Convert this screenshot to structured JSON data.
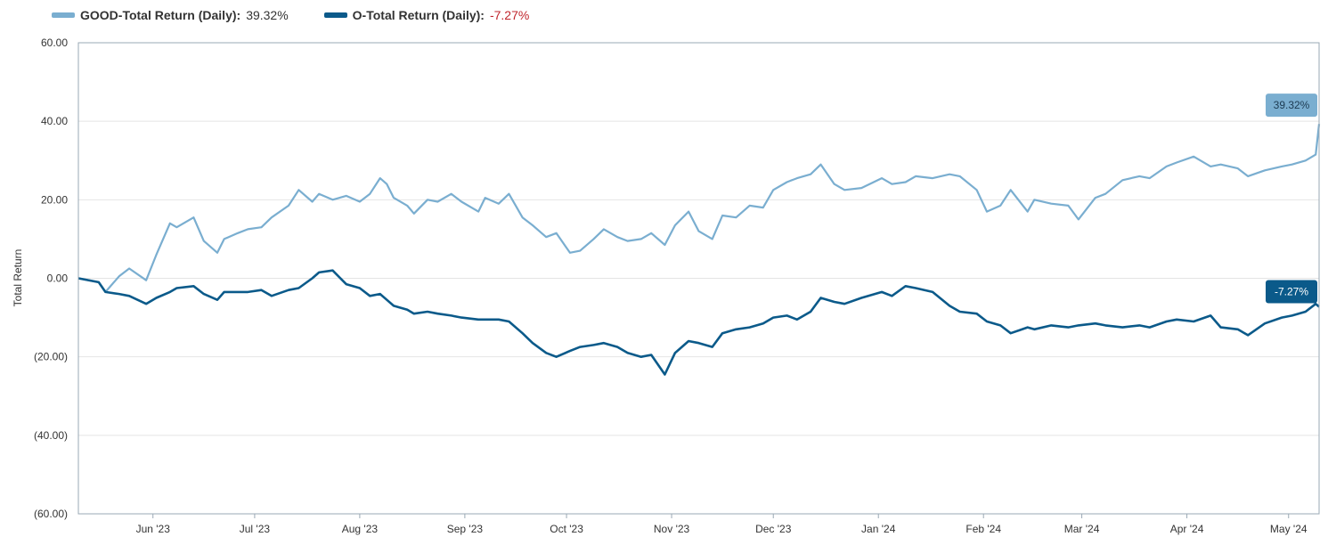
{
  "legend": {
    "good_name": "GOOD-Total Return (Daily):",
    "good_value": "39.32%",
    "o_name": "O-Total Return (Daily):",
    "o_value": "-7.27%"
  },
  "colors": {
    "good": "#7aaed0",
    "o": "#0b5a8a",
    "negative_text": "#c0262d",
    "grid": "#e4e4e4",
    "axis": "#9aa8b4"
  },
  "chart_data": {
    "type": "line",
    "ylabel": "Total Return",
    "ylim": [
      -60,
      60
    ],
    "y_ticks": [
      60,
      40,
      20,
      0,
      -20,
      -40,
      -60
    ],
    "y_tick_labels": [
      "60.00",
      "40.00",
      "20.00",
      "0.00",
      "(20.00)",
      "(40.00)",
      "(60.00)"
    ],
    "x_range": [
      "2023-05-10",
      "2024-05-10"
    ],
    "x_ticks": [
      "2023-06-01",
      "2023-07-01",
      "2023-08-01",
      "2023-09-01",
      "2023-10-01",
      "2023-11-01",
      "2023-12-01",
      "2024-01-01",
      "2024-02-01",
      "2024-03-01",
      "2024-04-01",
      "2024-05-01"
    ],
    "x_tick_labels": [
      "Jun '23",
      "Jul '23",
      "Aug '23",
      "Sep '23",
      "Oct '23",
      "Nov '23",
      "Dec '23",
      "Jan '24",
      "Feb '24",
      "Mar '24",
      "Apr '24",
      "May '24"
    ],
    "series": [
      {
        "name": "GOOD-Total Return (Daily)",
        "color": "#7aaed0",
        "end_label": "39.32%",
        "x": [
          "2023-05-10",
          "2023-05-16",
          "2023-05-18",
          "2023-05-22",
          "2023-05-25",
          "2023-05-30",
          "2023-06-02",
          "2023-06-06",
          "2023-06-08",
          "2023-06-13",
          "2023-06-16",
          "2023-06-20",
          "2023-06-22",
          "2023-06-26",
          "2023-06-29",
          "2023-07-03",
          "2023-07-06",
          "2023-07-11",
          "2023-07-14",
          "2023-07-18",
          "2023-07-20",
          "2023-07-24",
          "2023-07-28",
          "2023-08-01",
          "2023-08-04",
          "2023-08-07",
          "2023-08-09",
          "2023-08-11",
          "2023-08-15",
          "2023-08-17",
          "2023-08-21",
          "2023-08-24",
          "2023-08-28",
          "2023-08-31",
          "2023-09-05",
          "2023-09-07",
          "2023-09-11",
          "2023-09-14",
          "2023-09-18",
          "2023-09-21",
          "2023-09-25",
          "2023-09-28",
          "2023-10-02",
          "2023-10-05",
          "2023-10-09",
          "2023-10-12",
          "2023-10-16",
          "2023-10-19",
          "2023-10-23",
          "2023-10-26",
          "2023-10-30",
          "2023-11-02",
          "2023-11-06",
          "2023-11-09",
          "2023-11-13",
          "2023-11-16",
          "2023-11-20",
          "2023-11-24",
          "2023-11-28",
          "2023-12-01",
          "2023-12-05",
          "2023-12-08",
          "2023-12-12",
          "2023-12-15",
          "2023-12-19",
          "2023-12-22",
          "2023-12-27",
          "2024-01-02",
          "2024-01-05",
          "2024-01-09",
          "2024-01-12",
          "2024-01-17",
          "2024-01-22",
          "2024-01-25",
          "2024-01-30",
          "2024-02-02",
          "2024-02-06",
          "2024-02-09",
          "2024-02-14",
          "2024-02-16",
          "2024-02-21",
          "2024-02-26",
          "2024-02-29",
          "2024-03-05",
          "2024-03-08",
          "2024-03-13",
          "2024-03-18",
          "2024-03-21",
          "2024-03-26",
          "2024-03-29",
          "2024-04-03",
          "2024-04-08",
          "2024-04-11",
          "2024-04-16",
          "2024-04-19",
          "2024-04-24",
          "2024-04-29",
          "2024-05-02",
          "2024-05-06",
          "2024-05-09",
          "2024-05-10"
        ],
        "y": [
          0.0,
          -1.0,
          -3.5,
          0.5,
          2.5,
          -0.5,
          6.0,
          14.0,
          13.0,
          15.5,
          9.5,
          6.5,
          10.0,
          11.5,
          12.5,
          13.0,
          15.5,
          18.5,
          22.5,
          19.5,
          21.5,
          20.0,
          21.0,
          19.5,
          21.5,
          25.5,
          24.0,
          20.5,
          18.5,
          16.5,
          20.0,
          19.5,
          21.5,
          19.5,
          17.0,
          20.5,
          19.0,
          21.5,
          15.5,
          13.5,
          10.5,
          11.5,
          6.5,
          7.0,
          10.0,
          12.5,
          10.5,
          9.5,
          10.0,
          11.5,
          8.5,
          13.5,
          17.0,
          12.0,
          10.0,
          16.0,
          15.5,
          18.5,
          18.0,
          22.5,
          24.5,
          25.5,
          26.5,
          29.0,
          24.0,
          22.5,
          23.0,
          25.5,
          24.0,
          24.5,
          26.0,
          25.5,
          26.5,
          26.0,
          22.5,
          17.0,
          18.5,
          22.5,
          17.0,
          20.0,
          19.0,
          18.5,
          15.0,
          20.5,
          21.5,
          25.0,
          26.0,
          25.5,
          28.5,
          29.5,
          31.0,
          28.5,
          29.0,
          28.0,
          26.0,
          27.5,
          28.5,
          29.0,
          30.0,
          31.5,
          39.32
        ]
      },
      {
        "name": "O-Total Return (Daily)",
        "color": "#0b5a8a",
        "end_label": "-7.27%",
        "x": [
          "2023-05-10",
          "2023-05-16",
          "2023-05-18",
          "2023-05-22",
          "2023-05-25",
          "2023-05-30",
          "2023-06-02",
          "2023-06-06",
          "2023-06-08",
          "2023-06-13",
          "2023-06-16",
          "2023-06-20",
          "2023-06-22",
          "2023-06-26",
          "2023-06-29",
          "2023-07-03",
          "2023-07-06",
          "2023-07-11",
          "2023-07-14",
          "2023-07-18",
          "2023-07-20",
          "2023-07-24",
          "2023-07-28",
          "2023-08-01",
          "2023-08-04",
          "2023-08-07",
          "2023-08-09",
          "2023-08-11",
          "2023-08-15",
          "2023-08-17",
          "2023-08-21",
          "2023-08-24",
          "2023-08-28",
          "2023-08-31",
          "2023-09-05",
          "2023-09-07",
          "2023-09-11",
          "2023-09-14",
          "2023-09-18",
          "2023-09-21",
          "2023-09-25",
          "2023-09-28",
          "2023-10-02",
          "2023-10-05",
          "2023-10-09",
          "2023-10-12",
          "2023-10-16",
          "2023-10-19",
          "2023-10-23",
          "2023-10-26",
          "2023-10-30",
          "2023-11-02",
          "2023-11-06",
          "2023-11-09",
          "2023-11-13",
          "2023-11-16",
          "2023-11-20",
          "2023-11-24",
          "2023-11-28",
          "2023-12-01",
          "2023-12-05",
          "2023-12-08",
          "2023-12-12",
          "2023-12-15",
          "2023-12-19",
          "2023-12-22",
          "2023-12-27",
          "2024-01-02",
          "2024-01-05",
          "2024-01-09",
          "2024-01-12",
          "2024-01-17",
          "2024-01-22",
          "2024-01-25",
          "2024-01-30",
          "2024-02-02",
          "2024-02-06",
          "2024-02-09",
          "2024-02-14",
          "2024-02-16",
          "2024-02-21",
          "2024-02-26",
          "2024-02-29",
          "2024-03-05",
          "2024-03-08",
          "2024-03-13",
          "2024-03-18",
          "2024-03-21",
          "2024-03-26",
          "2024-03-29",
          "2024-04-03",
          "2024-04-08",
          "2024-04-11",
          "2024-04-16",
          "2024-04-19",
          "2024-04-24",
          "2024-04-29",
          "2024-05-02",
          "2024-05-06",
          "2024-05-09",
          "2024-05-10"
        ],
        "y": [
          0.0,
          -1.0,
          -3.5,
          -4.0,
          -4.5,
          -6.5,
          -5.0,
          -3.5,
          -2.5,
          -2.0,
          -4.0,
          -5.5,
          -3.5,
          -3.5,
          -3.5,
          -3.0,
          -4.5,
          -3.0,
          -2.5,
          0.0,
          1.5,
          2.0,
          -1.5,
          -2.5,
          -4.5,
          -4.0,
          -5.5,
          -7.0,
          -8.0,
          -9.0,
          -8.5,
          -9.0,
          -9.5,
          -10.0,
          -10.5,
          -10.5,
          -10.5,
          -11.0,
          -14.0,
          -16.5,
          -19.0,
          -20.0,
          -18.5,
          -17.5,
          -17.0,
          -16.5,
          -17.5,
          -19.0,
          -20.0,
          -19.5,
          -24.5,
          -19.0,
          -16.0,
          -16.5,
          -17.5,
          -14.0,
          -13.0,
          -12.5,
          -11.5,
          -10.0,
          -9.5,
          -10.5,
          -8.5,
          -5.0,
          -6.0,
          -6.5,
          -5.0,
          -3.5,
          -4.5,
          -2.0,
          -2.5,
          -3.5,
          -7.0,
          -8.5,
          -9.0,
          -11.0,
          -12.0,
          -14.0,
          -12.5,
          -13.0,
          -12.0,
          -12.5,
          -12.0,
          -11.5,
          -12.0,
          -12.5,
          -12.0,
          -12.5,
          -11.0,
          -10.5,
          -11.0,
          -9.5,
          -12.5,
          -13.0,
          -14.5,
          -11.5,
          -10.0,
          -9.5,
          -8.5,
          -6.5,
          -7.27
        ]
      }
    ]
  }
}
